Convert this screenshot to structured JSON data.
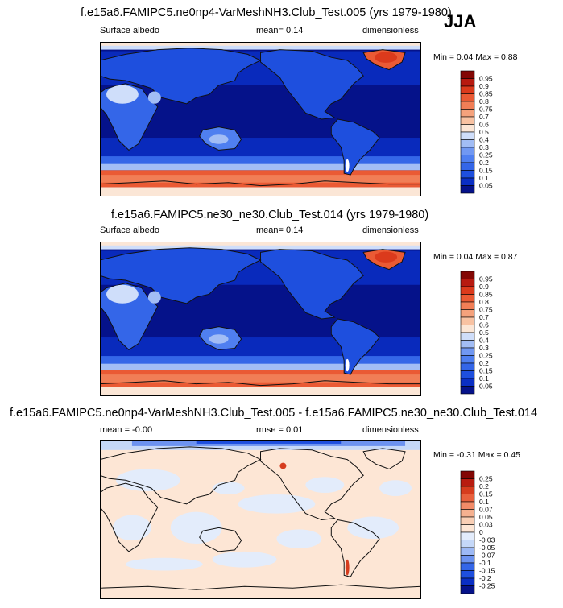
{
  "season": "JJA",
  "panels": [
    {
      "title": "f.e15a6.FAMIPC5.ne0np4-VarMeshNH3.Club_Test.005 (yrs 1979-1980)",
      "left_label": "Surface albedo",
      "center_label": "mean=  0.14",
      "right_label": "dimensionless",
      "minmax": "Min =  0.04 Max =  0.88"
    },
    {
      "title": "f.e15a6.FAMIPC5.ne30_ne30.Club_Test.014 (yrs 1979-1980)",
      "left_label": "Surface albedo",
      "center_label": "mean=  0.14",
      "right_label": "dimensionless",
      "minmax": "Min =  0.04 Max =  0.87"
    },
    {
      "title": "f.e15a6.FAMIPC5.ne0np4-VarMeshNH3.Club_Test.005 - f.e15a6.FAMIPC5.ne30_ne30.Club_Test.014",
      "left_label": "mean = -0.00",
      "center_label": "rmse =  0.01",
      "right_label": "dimensionless",
      "minmax": "Min = -0.31 Max =  0.45"
    }
  ],
  "chart_data": [
    {
      "type": "heatmap",
      "title": "f.e15a6.FAMIPC5.ne0np4-VarMeshNH3.Club_Test.005 (yrs 1979-1980)",
      "variable": "Surface albedo",
      "units": "dimensionless",
      "mean": 0.14,
      "min": 0.04,
      "max": 0.88,
      "colorbar_levels": [
        "0.05",
        "0.1",
        "0.15",
        "0.2",
        "0.25",
        "0.3",
        "0.4",
        "0.5",
        "0.6",
        "0.7",
        "0.75",
        "0.8",
        "0.85",
        "0.9",
        "0.95"
      ],
      "colorbar_colors": [
        "#05128a",
        "#0a2fc4",
        "#1e4fde",
        "#3466e8",
        "#4f7ff0",
        "#7198f2",
        "#a2bdf5",
        "#cfdefa",
        "#fbe6d6",
        "#f8c2a2",
        "#f5a27c",
        "#f17e56",
        "#ea5a34",
        "#db3a1c",
        "#b71a10",
        "#830704"
      ]
    },
    {
      "type": "heatmap",
      "title": "f.e15a6.FAMIPC5.ne30_ne30.Club_Test.014 (yrs 1979-1980)",
      "variable": "Surface albedo",
      "units": "dimensionless",
      "mean": 0.14,
      "min": 0.04,
      "max": 0.87,
      "colorbar_levels": [
        "0.05",
        "0.1",
        "0.15",
        "0.2",
        "0.25",
        "0.3",
        "0.4",
        "0.5",
        "0.6",
        "0.7",
        "0.75",
        "0.8",
        "0.85",
        "0.9",
        "0.95"
      ],
      "colorbar_colors": [
        "#05128a",
        "#0a2fc4",
        "#1e4fde",
        "#3466e8",
        "#4f7ff0",
        "#7198f2",
        "#a2bdf5",
        "#cfdefa",
        "#fbe6d6",
        "#f8c2a2",
        "#f5a27c",
        "#f17e56",
        "#ea5a34",
        "#db3a1c",
        "#b71a10",
        "#830704"
      ]
    },
    {
      "type": "heatmap",
      "title": "f.e15a6.FAMIPC5.ne0np4-VarMeshNH3.Club_Test.005 - f.e15a6.FAMIPC5.ne30_ne30.Club_Test.014",
      "units": "dimensionless",
      "mean": -0.0,
      "rmse": 0.01,
      "min": -0.31,
      "max": 0.45,
      "colorbar_levels": [
        "-0.25",
        "-0.2",
        "-0.15",
        "-0.1",
        "-0.07",
        "-0.05",
        "-0.03",
        "0",
        "0.03",
        "0.05",
        "0.07",
        "0.1",
        "0.15",
        "0.2",
        "0.25"
      ],
      "colorbar_colors": [
        "#05128a",
        "#0a2fc4",
        "#1e4fde",
        "#3466e8",
        "#6d93f0",
        "#9db9f5",
        "#c5d8f8",
        "#e3ecfb",
        "#fde6d5",
        "#f9cfb5",
        "#f5b190",
        "#f28b68",
        "#e8603d",
        "#d63c1e",
        "#b81c10",
        "#830704"
      ]
    }
  ]
}
